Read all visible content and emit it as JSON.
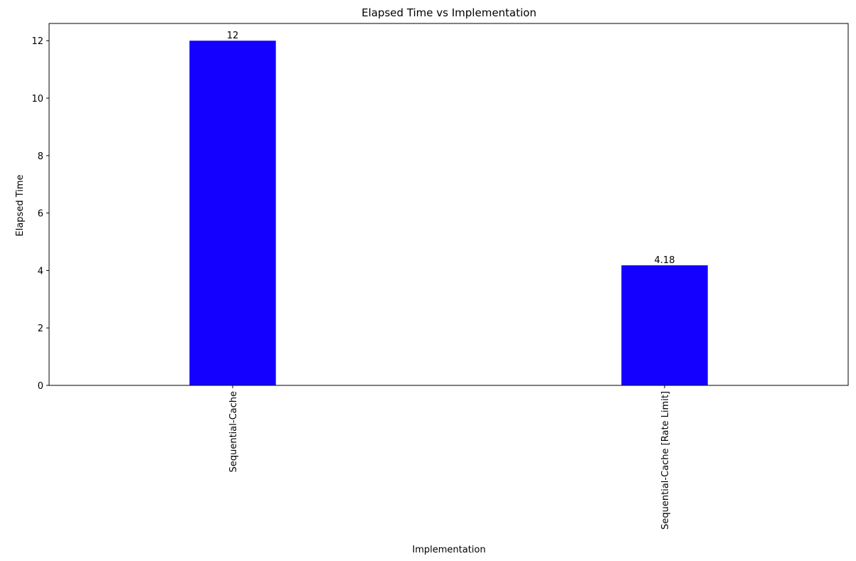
{
  "chart_data": {
    "type": "bar",
    "title": "Elapsed Time vs Implementation",
    "xlabel": "Implementation",
    "ylabel": "Elapsed Time",
    "categories": [
      "Sequential-Cache",
      "Sequential-Cache [Rate Limit]"
    ],
    "values": [
      12,
      4.18
    ],
    "data_labels": [
      "12",
      "4.18"
    ],
    "ylim": [
      0,
      12.6
    ],
    "yticks": [
      0,
      2,
      4,
      6,
      8,
      10,
      12
    ],
    "ytick_labels": [
      "0",
      "2",
      "4",
      "6",
      "8",
      "10",
      "12"
    ],
    "xtick_rotation": "vertical",
    "grid": false,
    "legend": "none",
    "bar_color": "#1400ff"
  }
}
